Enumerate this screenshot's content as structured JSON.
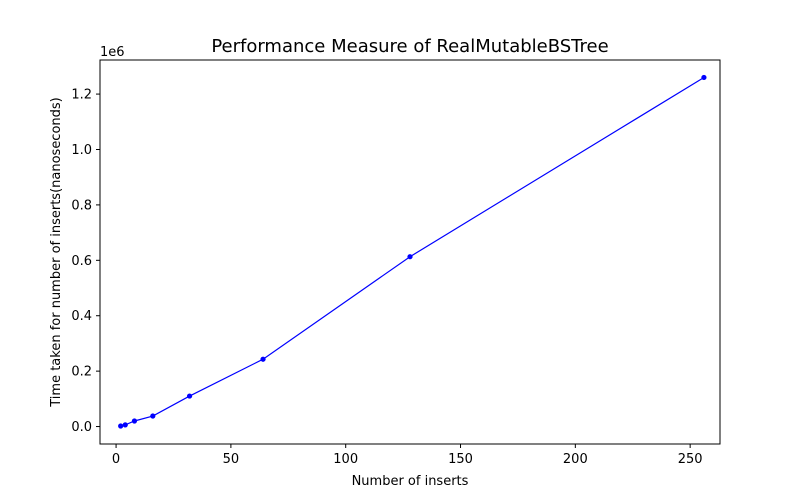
{
  "chart_data": {
    "type": "line",
    "title": "Performance Measure of RealMutableBSTree",
    "xlabel": "Number of inserts",
    "ylabel": "Time taken for number of inserts(nanoseconds)",
    "y_offset_label": "1e6",
    "xlim": [
      -7,
      263
    ],
    "ylim": [
      -0.063,
      1.323
    ],
    "x_ticks": [
      0,
      50,
      100,
      150,
      200,
      250
    ],
    "x_tick_labels": [
      "0",
      "50",
      "100",
      "150",
      "200",
      "250"
    ],
    "y_ticks": [
      0.0,
      0.2,
      0.4,
      0.6,
      0.8,
      1.0,
      1.2
    ],
    "y_tick_labels": [
      "0.0",
      "0.2",
      "0.4",
      "0.6",
      "0.8",
      "1.0",
      "1.2"
    ],
    "grid": false,
    "legend": "none",
    "series": [
      {
        "color": "#0000ff",
        "marker": "dot",
        "x": [
          2,
          4,
          8,
          16,
          32,
          64,
          128,
          256
        ],
        "y": [
          0.002,
          0.006,
          0.02,
          0.038,
          0.11,
          0.243,
          0.613,
          1.26
        ]
      }
    ]
  }
}
